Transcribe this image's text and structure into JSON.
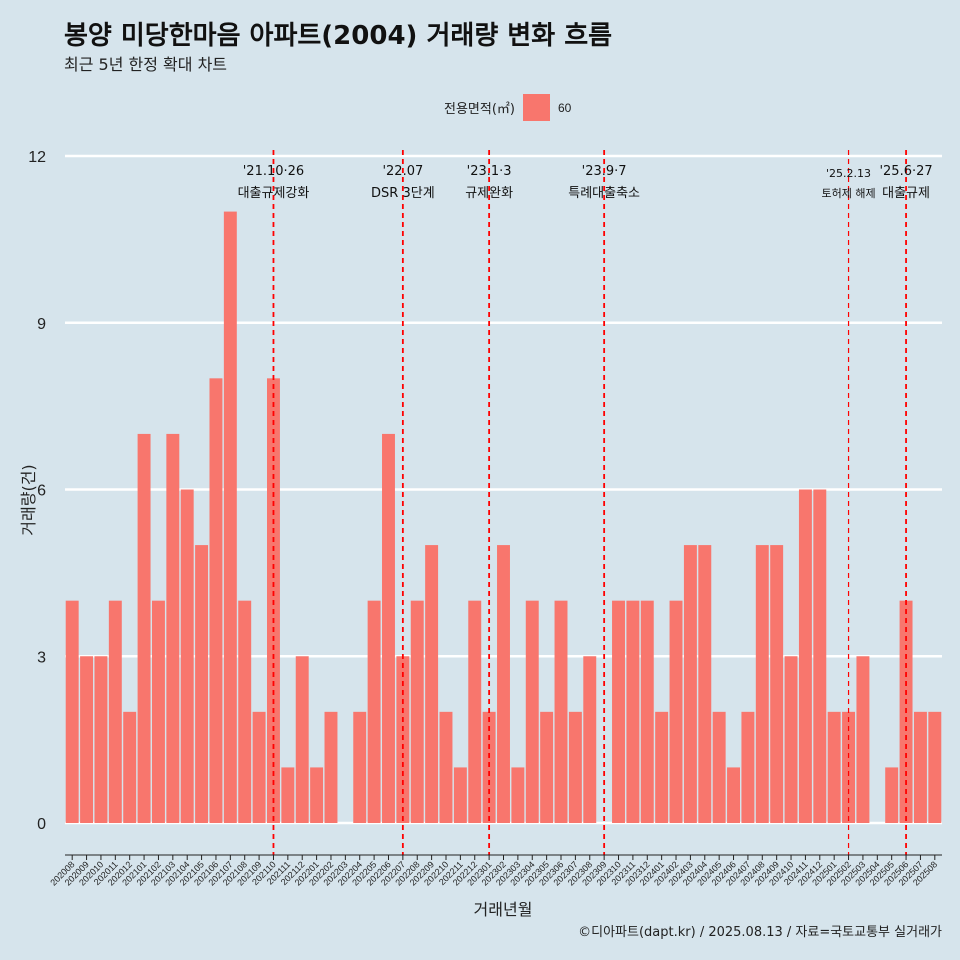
{
  "header": {
    "title": "봉양 미당한마음 아파트(2004) 거래량 변화 흐름",
    "subtitle": "최근 5년 한정 확대 차트"
  },
  "legend": {
    "title": "전용면적(㎡)",
    "label": "60",
    "color": "#f8766d"
  },
  "caption": "©디아파트(dapt.kr) / 2025.08.13 / 자료=국토교통부 실거래가",
  "chart_data": {
    "type": "bar",
    "xlabel": "거래년월",
    "ylabel": "거래량(건)",
    "ylim": [
      0,
      12
    ],
    "yticks": [
      0,
      3,
      6,
      9,
      12
    ],
    "grid": true,
    "legend_position": "top",
    "bar_color": "#f8766d",
    "categories": [
      "202008",
      "202009",
      "202010",
      "202011",
      "202012",
      "202101",
      "202102",
      "202103",
      "202104",
      "202105",
      "202106",
      "202107",
      "202108",
      "202109",
      "202110",
      "202111",
      "202112",
      "202201",
      "202202",
      "202203",
      "202204",
      "202205",
      "202206",
      "202207",
      "202208",
      "202209",
      "202210",
      "202211",
      "202212",
      "202301",
      "202302",
      "202303",
      "202304",
      "202305",
      "202306",
      "202307",
      "202308",
      "202309",
      "202310",
      "202311",
      "202312",
      "202401",
      "202402",
      "202403",
      "202404",
      "202405",
      "202406",
      "202407",
      "202408",
      "202409",
      "202410",
      "202411",
      "202412",
      "202501",
      "202502",
      "202503",
      "202504",
      "202505",
      "202506",
      "202507",
      "202508"
    ],
    "series": [
      {
        "name": "60",
        "values": [
          4,
          3,
          3,
          4,
          2,
          7,
          4,
          7,
          6,
          5,
          8,
          11,
          4,
          2,
          8,
          1,
          3,
          1,
          2,
          0,
          2,
          4,
          7,
          3,
          4,
          5,
          2,
          1,
          4,
          2,
          5,
          1,
          4,
          2,
          4,
          2,
          3,
          0,
          4,
          4,
          4,
          2,
          4,
          5,
          5,
          2,
          1,
          2,
          5,
          5,
          3,
          6,
          6,
          2,
          2,
          3,
          0,
          1,
          4,
          2,
          2
        ]
      }
    ],
    "events": [
      {
        "date_label": "'21.10·26",
        "text": "대출규제강화",
        "x": 14.5,
        "size": "normal"
      },
      {
        "date_label": "'22.07",
        "text": "DSR 3단계",
        "x": 23.5,
        "size": "normal"
      },
      {
        "date_label": "'23.1·3",
        "text": "규제완화",
        "x": 29.5,
        "size": "normal"
      },
      {
        "date_label": "'23.9·7",
        "text": "특례대출축소",
        "x": 37.5,
        "size": "normal"
      },
      {
        "date_label": "'25.2.13",
        "text": "토허제 해제",
        "x": 54.5,
        "size": "small"
      },
      {
        "date_label": "'25.6·27",
        "text": "대출규제",
        "x": 58.5,
        "size": "normal"
      }
    ],
    "event_line_color": "#ff0000"
  }
}
